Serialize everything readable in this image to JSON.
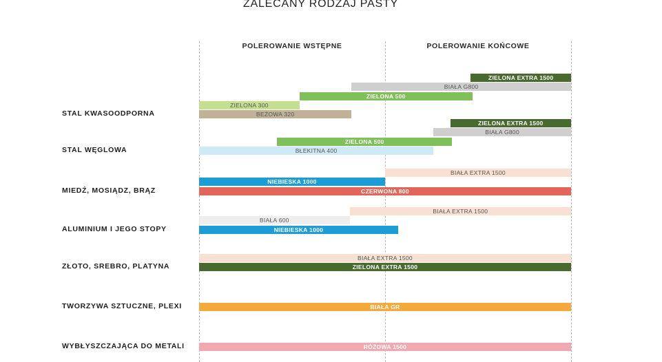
{
  "chart_data": {
    "type": "bar",
    "title": "ZALECANY RODZAJ PASTY",
    "phases": [
      "POLEROWANIE WSTĘPNE",
      "POLEROWANIE KOŃCOWE"
    ],
    "x_range": [
      0,
      2
    ],
    "grid": "vertical dashed lines at 0, 1, 2",
    "categories": [
      {
        "name": "STAL KWASOODPORNA",
        "bars": [
          {
            "label": "ZIELONA EXTRA 1500",
            "start": 1.46,
            "end": 2.0,
            "color": "#486a2e"
          },
          {
            "label": "BIAŁA G800",
            "start": 0.82,
            "end": 2.0,
            "color": "#cfcfcf"
          },
          {
            "label": "ZIELONA 500",
            "start": 0.54,
            "end": 1.47,
            "color": "#7fc05a"
          },
          {
            "label": "ZIELONA 300",
            "start": 0.0,
            "end": 0.54,
            "color": "#c4e08e"
          },
          {
            "label": "BEŻOWA 320",
            "start": 0.0,
            "end": 0.82,
            "color": "#c0b197"
          }
        ]
      },
      {
        "name": "STAL WĘGLOWA",
        "bars": [
          {
            "label": "ZIELONA EXTRA 1500",
            "start": 1.35,
            "end": 2.0,
            "color": "#486a2e"
          },
          {
            "label": "BIAŁA G800",
            "start": 1.26,
            "end": 2.0,
            "color": "#cfcfcf"
          },
          {
            "label": "ZIELONA 500",
            "start": 0.42,
            "end": 1.36,
            "color": "#7fc05a"
          },
          {
            "label": "BŁEKITNA 400",
            "start": 0.0,
            "end": 1.26,
            "color": "#cdeaf6"
          }
        ]
      },
      {
        "name": "MIEDŹ, MOSIĄDZ, BRĄZ",
        "bars": [
          {
            "label": "BIAŁA EXTRA 1500",
            "start": 1.0,
            "end": 2.0,
            "color": "#f8e1d2"
          },
          {
            "label": "NIEBIESKA 1000",
            "start": 0.0,
            "end": 1.0,
            "color": "#1e9cd5"
          },
          {
            "label": "CZERWONA 800",
            "start": 0.0,
            "end": 2.0,
            "color": "#e2655c"
          }
        ]
      },
      {
        "name": "ALUMINIUM I JEGO STOPY",
        "bars": [
          {
            "label": "BIAŁA EXTRA 1500",
            "start": 0.81,
            "end": 2.0,
            "color": "#f8e1d2"
          },
          {
            "label": "BIAŁA 600",
            "start": 0.0,
            "end": 0.81,
            "color": "#eeeeee"
          },
          {
            "label": "NIEBIESKA 1000",
            "start": 0.0,
            "end": 1.07,
            "color": "#1e9cd5"
          }
        ]
      },
      {
        "name": "ZŁOTO, SREBRO, PLATYNA",
        "bars": [
          {
            "label": "BIAŁA EXTRA 1500",
            "start": 0.0,
            "end": 2.0,
            "color": "#f8e1d2"
          },
          {
            "label": "ZIELONA EXTRA 1500",
            "start": 0.0,
            "end": 2.0,
            "color": "#486a2e"
          }
        ]
      },
      {
        "name": "TWORZYWA SZTUCZNE, PLEXI",
        "bars": [
          {
            "label": "BIAŁA GR",
            "start": 0.0,
            "end": 2.0,
            "color": "#f4a93a"
          }
        ]
      },
      {
        "name": "WYBŁYSZCZAJĄCA DO METALI",
        "bars": [
          {
            "label": "RÓŻOWA 1500",
            "start": 0.0,
            "end": 2.0,
            "color": "#f1a8b1"
          }
        ]
      }
    ]
  }
}
